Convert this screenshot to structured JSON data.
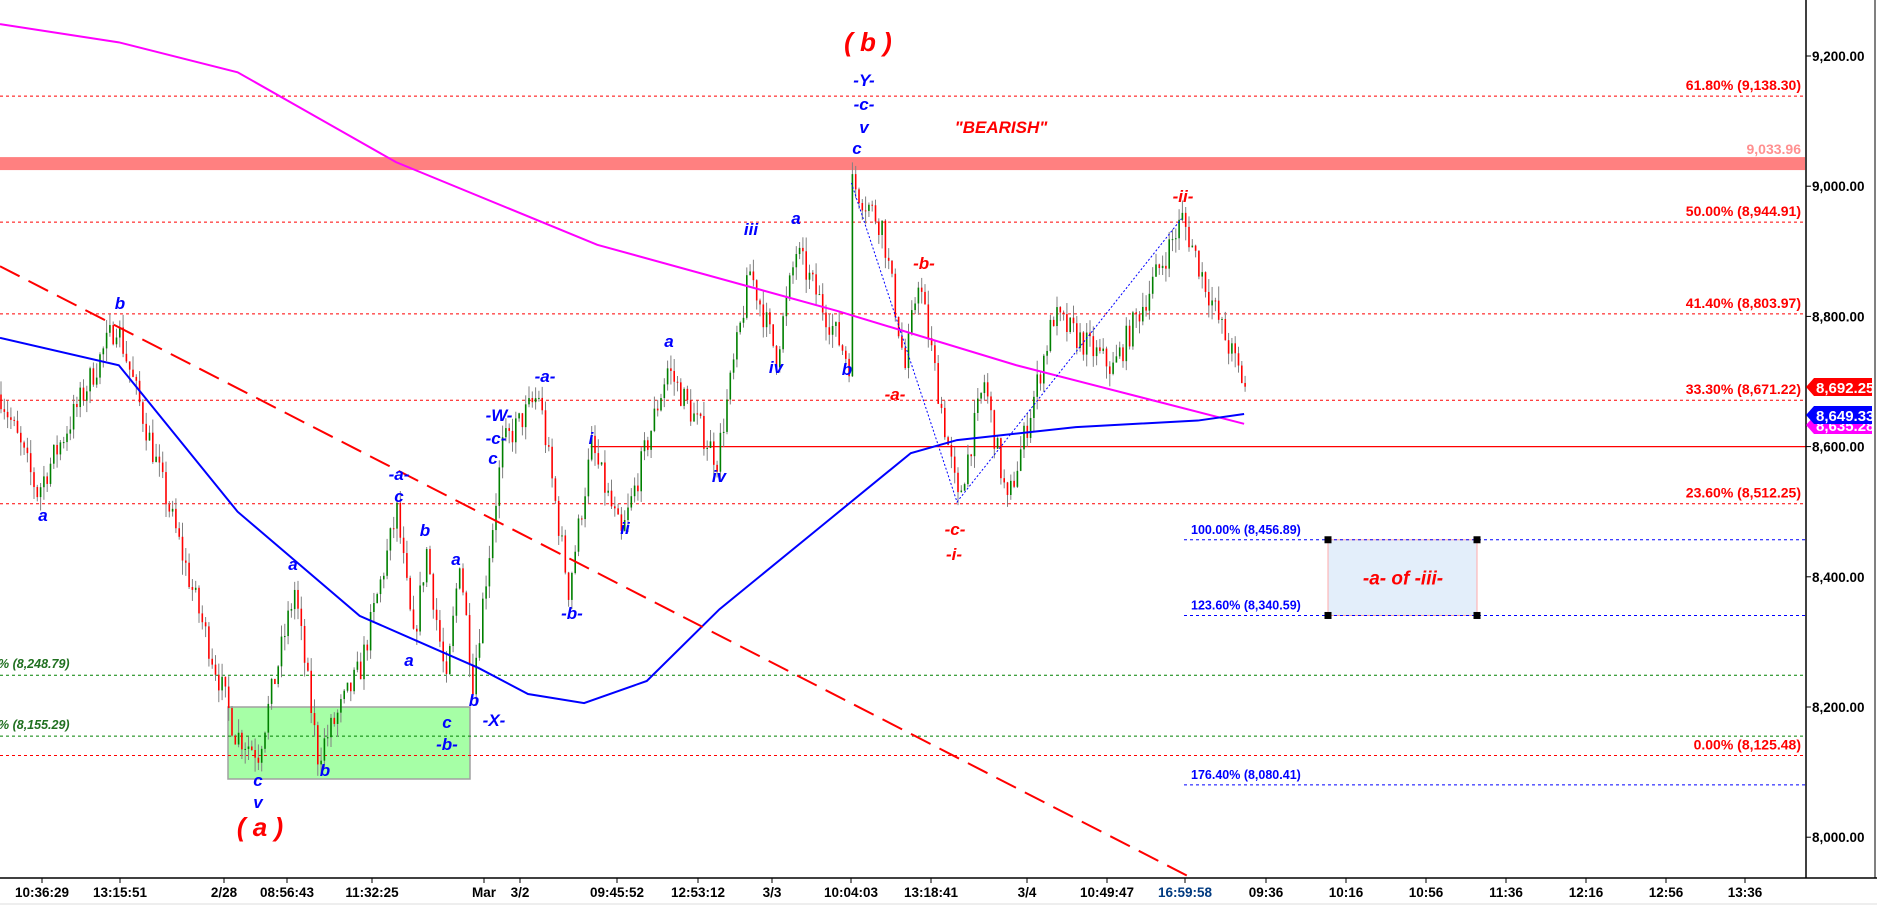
{
  "chart_data": {
    "type": "candlestick",
    "title": "",
    "y_axis": {
      "side": "right",
      "ylim": [
        7935,
        9285
      ],
      "ticks": [
        {
          "value": 9200,
          "label": "9,200.00"
        },
        {
          "value": 9000,
          "label": "9,000.00"
        },
        {
          "value": 8800,
          "label": "8,800.00"
        },
        {
          "value": 8600,
          "label": "8,600.00"
        },
        {
          "value": 8400,
          "label": "8,400.00"
        },
        {
          "value": 8200,
          "label": "8,200.00"
        },
        {
          "value": 8000,
          "label": "8,000.00"
        }
      ]
    },
    "x_axis": {
      "ticks": [
        "10:36:29",
        "13:15:51",
        "2/28",
        "08:56:43",
        "11:32:25",
        "Mar",
        "3/2",
        "09:45:52",
        "12:53:12",
        "3/3",
        "10:04:03",
        "13:18:41",
        "3/4",
        "10:49:47",
        "16:59:58",
        "09:36",
        "10:16",
        "10:56",
        "11:36",
        "12:16",
        "12:56",
        "13:36"
      ]
    },
    "grid": false,
    "colors": {
      "up": "#008000",
      "down": "#ff0000",
      "wick": "#808080",
      "ma_fast": "#0000ff",
      "ma_slow": "#ff00ff",
      "fib_red": "#ff0000",
      "fib_blue": "#0000ff",
      "fib_green": "#008000",
      "resistance_band": "#ff8080",
      "wave_blue": "#0000ff",
      "wave_red": "#ff0000"
    },
    "price_path": [
      {
        "bar": 0,
        "price": 8680
      },
      {
        "bar": 11,
        "price": 8530
      },
      {
        "bar": 35,
        "price": 8790
      },
      {
        "bar": 58,
        "price": 8380
      },
      {
        "bar": 71,
        "price": 8160
      },
      {
        "bar": 78,
        "price": 8130
      },
      {
        "bar": 89,
        "price": 8380
      },
      {
        "bar": 96,
        "price": 8125
      },
      {
        "bar": 109,
        "price": 8260
      },
      {
        "bar": 120,
        "price": 8500
      },
      {
        "bar": 125,
        "price": 8300
      },
      {
        "bar": 129,
        "price": 8440
      },
      {
        "bar": 135,
        "price": 8230
      },
      {
        "bar": 139,
        "price": 8430
      },
      {
        "bar": 143,
        "price": 8240
      },
      {
        "bar": 152,
        "price": 8600
      },
      {
        "bar": 163,
        "price": 8680
      },
      {
        "bar": 172,
        "price": 8380
      },
      {
        "bar": 179,
        "price": 8600
      },
      {
        "bar": 188,
        "price": 8460
      },
      {
        "bar": 202,
        "price": 8720
      },
      {
        "bar": 217,
        "price": 8580
      },
      {
        "bar": 227,
        "price": 8870
      },
      {
        "bar": 235,
        "price": 8740
      },
      {
        "bar": 241,
        "price": 8900
      },
      {
        "bar": 257,
        "price": 8730
      },
      {
        "bar": 258,
        "price": 9005
      },
      {
        "bar": 267,
        "price": 8940
      },
      {
        "bar": 274,
        "price": 8720
      },
      {
        "bar": 278,
        "price": 8860
      },
      {
        "bar": 290,
        "price": 8515
      },
      {
        "bar": 298,
        "price": 8700
      },
      {
        "bar": 305,
        "price": 8510
      },
      {
        "bar": 319,
        "price": 8800
      },
      {
        "bar": 337,
        "price": 8720
      },
      {
        "bar": 358,
        "price": 8950
      },
      {
        "bar": 370,
        "price": 8780
      },
      {
        "bar": 377,
        "price": 8692
      }
    ],
    "ma_blue": [
      {
        "bar": 0,
        "price": 8767
      },
      {
        "bar": 36,
        "price": 8725
      },
      {
        "bar": 72,
        "price": 8500
      },
      {
        "bar": 109,
        "price": 8340
      },
      {
        "bar": 145,
        "price": 8260
      },
      {
        "bar": 160,
        "price": 8220
      },
      {
        "bar": 177,
        "price": 8206
      },
      {
        "bar": 196,
        "price": 8240
      },
      {
        "bar": 218,
        "price": 8350
      },
      {
        "bar": 247,
        "price": 8470
      },
      {
        "bar": 276,
        "price": 8590
      },
      {
        "bar": 290,
        "price": 8610
      },
      {
        "bar": 326,
        "price": 8630
      },
      {
        "bar": 363,
        "price": 8640
      },
      {
        "bar": 377,
        "price": 8650
      }
    ],
    "ma_magenta": [
      {
        "bar": 0,
        "price": 9249
      },
      {
        "bar": 36,
        "price": 9221
      },
      {
        "bar": 72,
        "price": 9175
      },
      {
        "bar": 120,
        "price": 9037
      },
      {
        "bar": 181,
        "price": 8910
      },
      {
        "bar": 254,
        "price": 8808
      },
      {
        "bar": 308,
        "price": 8725
      },
      {
        "bar": 377,
        "price": 8635
      }
    ],
    "trendline_red_dashed": [
      {
        "bar": 0,
        "price": 8877
      },
      {
        "bar": 377,
        "price": 7896
      }
    ],
    "dotted_blue_lines": [
      {
        "bar": 258,
        "price": 9005
      },
      {
        "bar": 290,
        "price": 8515
      },
      {
        "bar": 358,
        "price": 8950
      }
    ],
    "support_line": {
      "price": 8600,
      "from_bar": 179
    },
    "resistance_band": {
      "price": 9033.96,
      "label": "9,033.96"
    },
    "fib_red": [
      {
        "price": 9138.3,
        "label": "61.80% (9,138.30)"
      },
      {
        "price": 8944.91,
        "label": "50.00% (8,944.91)"
      },
      {
        "price": 8803.97,
        "label": "41.40% (8,803.97)"
      },
      {
        "price": 8671.22,
        "label": "33.30% (8,671.22)"
      },
      {
        "price": 8512.25,
        "label": "23.60% (8,512.25)"
      },
      {
        "price": 8125.48,
        "label": "0.00% (8,125.48)"
      }
    ],
    "fib_blue": [
      {
        "price": 8456.89,
        "label": "100.00% (8,456.89)"
      },
      {
        "price": 8340.59,
        "label": "123.60% (8,340.59)"
      },
      {
        "price": 8080.41,
        "label": "176.40% (8,080.41)"
      }
    ],
    "fib_green": [
      {
        "price": 8248.79,
        "label": "% (8,248.79)"
      },
      {
        "price": 8155.29,
        "label": "% (8,155.29)"
      }
    ],
    "target_box": {
      "top": 8456.89,
      "bottom": 8340.59,
      "label": "-a- of -iii-"
    },
    "green_zone": {
      "top": 8200,
      "bottom": 8090
    },
    "price_tags": [
      {
        "value": "8,692.25",
        "color": "#ff0000"
      },
      {
        "value": "8,635.28",
        "color": "#ff00ff"
      },
      {
        "value": "8,649.33",
        "color": "#0000ff"
      }
    ],
    "annotations": [
      {
        "text": "( b )",
        "color": "red"
      },
      {
        "text": "-Y-",
        "color": "blue"
      },
      {
        "text": "-c-",
        "color": "blue"
      },
      {
        "text": "v",
        "color": "blue"
      },
      {
        "text": "c",
        "color": "blue"
      },
      {
        "text": "\"BEARISH\"",
        "color": "red"
      },
      {
        "text": "-ii-",
        "color": "red"
      },
      {
        "text": "-b-",
        "color": "red"
      },
      {
        "text": "-a-",
        "color": "red"
      },
      {
        "text": "-c-",
        "color": "red"
      },
      {
        "text": "-i-",
        "color": "red"
      },
      {
        "text": "iii",
        "color": "blue"
      },
      {
        "text": "a",
        "color": "blue"
      },
      {
        "text": "iv",
        "color": "blue"
      },
      {
        "text": "b",
        "color": "blue"
      },
      {
        "text": "iv",
        "color": "blue"
      },
      {
        "text": "i",
        "color": "blue"
      },
      {
        "text": "ii",
        "color": "blue"
      },
      {
        "text": "-b-",
        "color": "blue"
      },
      {
        "text": "-a-",
        "color": "blue"
      },
      {
        "text": "-W-",
        "color": "blue"
      },
      {
        "text": "-c-",
        "color": "blue"
      },
      {
        "text": "c",
        "color": "blue"
      },
      {
        "text": "-a-",
        "color": "blue"
      },
      {
        "text": "c",
        "color": "blue"
      },
      {
        "text": "b",
        "color": "blue"
      },
      {
        "text": "a",
        "color": "blue"
      },
      {
        "text": "a",
        "color": "blue"
      },
      {
        "text": "a",
        "color": "blue"
      },
      {
        "text": "b",
        "color": "blue"
      },
      {
        "text": "c",
        "color": "blue"
      },
      {
        "text": "-b-",
        "color": "blue"
      },
      {
        "text": "-X-",
        "color": "blue"
      },
      {
        "text": "a",
        "color": "blue"
      },
      {
        "text": "b",
        "color": "blue"
      },
      {
        "text": "a",
        "color": "blue"
      },
      {
        "text": "c",
        "color": "blue"
      },
      {
        "text": "v",
        "color": "blue"
      },
      {
        "text": "b",
        "color": "blue"
      },
      {
        "text": "( a )",
        "color": "red"
      }
    ]
  }
}
